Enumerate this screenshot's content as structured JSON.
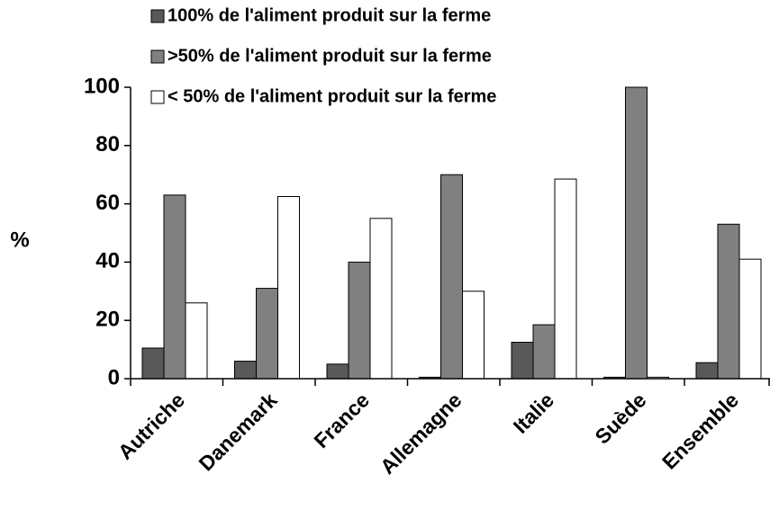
{
  "chart_data": {
    "type": "bar",
    "y_label": "%",
    "categories": [
      "Autriche",
      "Danemark",
      "France",
      "Allemagne",
      "Italie",
      "Suède",
      "Ensemble"
    ],
    "series": [
      {
        "name": "100% de l'aliment produit sur la ferme",
        "color": "#595959",
        "values": [
          10.5,
          6,
          5,
          0.5,
          12.5,
          0.5,
          5.5
        ]
      },
      {
        "name": ">50% de l'aliment produit sur la ferme",
        "color": "#808080",
        "values": [
          63,
          31,
          40,
          70,
          18.5,
          100,
          53
        ]
      },
      {
        "name": "< 50% de l'aliment produit sur la ferme",
        "color": "#ffffff",
        "values": [
          26,
          62.5,
          55,
          30,
          68.5,
          0.5,
          41
        ]
      }
    ],
    "ylim": [
      0,
      100
    ],
    "yticks": [
      0,
      20,
      40,
      60,
      80,
      100
    ]
  }
}
